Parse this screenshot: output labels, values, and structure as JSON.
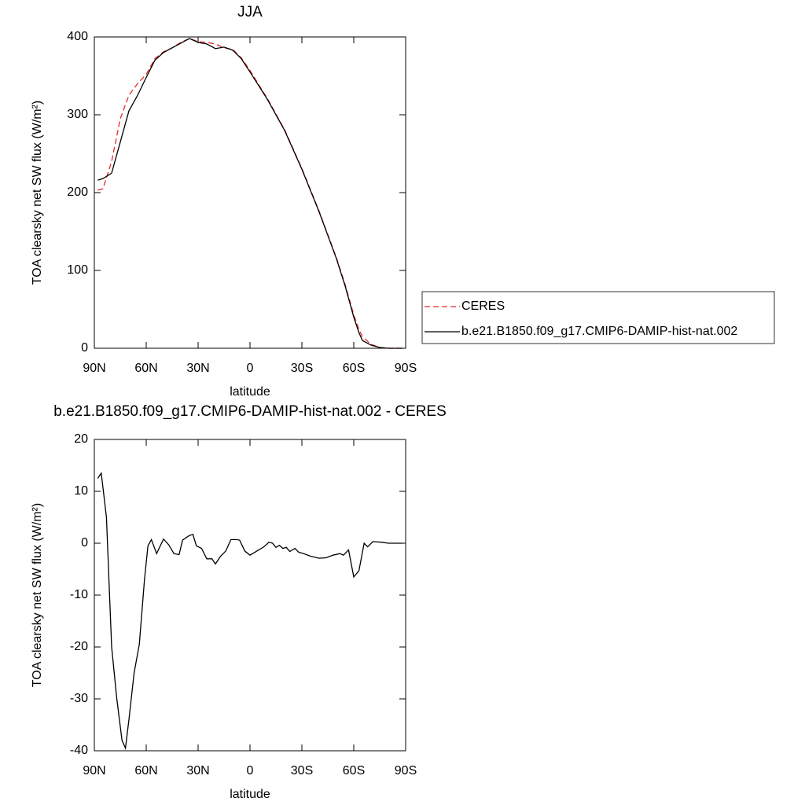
{
  "chart_data": [
    {
      "type": "line",
      "title": "JJA",
      "xlabel": "latitude",
      "ylabel": "TOA clearsky net SW flux (W/m²)",
      "x": [
        88,
        85,
        80,
        75,
        70,
        65,
        60,
        55,
        50,
        45,
        40,
        35,
        30,
        25,
        20,
        15,
        10,
        5,
        0,
        -10,
        -20,
        -30,
        -40,
        -50,
        -55,
        -60,
        -63,
        -65,
        -70,
        -75,
        -80,
        -85,
        -88
      ],
      "series": [
        {
          "name": "CERES",
          "color": "#e8282b",
          "linestyle": "dashed",
          "values": [
            203,
            205,
            240,
            295,
            325,
            340,
            352,
            372,
            381,
            386,
            393,
            398,
            394,
            393,
            391,
            386,
            384,
            373,
            357,
            321,
            281,
            231,
            176,
            116,
            82,
            43,
            24,
            15,
            5,
            1,
            0,
            0,
            0
          ]
        },
        {
          "name": "b.e21.B1850.f09_g17.CMIP6-DAMIP-hist-nat.002",
          "color": "#000000",
          "linestyle": "solid",
          "values": [
            216,
            218,
            225,
            265,
            305,
            325,
            348,
            370,
            380,
            386,
            392,
            398,
            393,
            391,
            385,
            387,
            383,
            372,
            355,
            320,
            280,
            230,
            175,
            115,
            80,
            40,
            20,
            10,
            4,
            1,
            0,
            0,
            0
          ]
        }
      ],
      "xlim": [
        90,
        -90
      ],
      "ylim": [
        0,
        400
      ],
      "xticks": [
        {
          "value": 90,
          "label": "90N"
        },
        {
          "value": 60,
          "label": "60N"
        },
        {
          "value": 30,
          "label": "30N"
        },
        0,
        {
          "value": -30,
          "label": "30S"
        },
        {
          "value": -60,
          "label": "60S"
        },
        {
          "value": -90,
          "label": "90S"
        }
      ],
      "yticks": [
        0,
        100,
        200,
        300,
        400
      ],
      "legend": "right-outside"
    },
    {
      "type": "line",
      "title": "b.e21.B1850.f09_g17.CMIP6-DAMIP-hist-nat.002 - CERES",
      "xlabel": "latitude",
      "ylabel": "TOA clearsky net SW flux (W/m²)",
      "x": [
        88,
        86,
        83,
        80,
        77,
        74,
        72,
        70,
        67,
        64,
        61,
        59,
        57,
        54,
        50,
        47,
        44,
        41,
        39,
        35,
        33,
        31,
        28,
        25,
        22,
        20,
        17,
        14,
        11,
        8,
        6,
        3,
        0,
        -4,
        -8,
        -11,
        -13,
        -15,
        -17,
        -19,
        -21,
        -23,
        -26,
        -28,
        -31,
        -35,
        -40,
        -44,
        -48,
        -52,
        -54,
        -57,
        -60,
        -63,
        -66,
        -68,
        -71,
        -76,
        -80,
        -88
      ],
      "series": [
        {
          "color": "#000000",
          "linestyle": "solid",
          "values": [
            12.5,
            13.5,
            5,
            -20,
            -30,
            -38,
            -39.5,
            -34,
            -25,
            -19.5,
            -7,
            -0.5,
            0.7,
            -2,
            0.8,
            -0.3,
            -2,
            -2.2,
            0.6,
            1.5,
            1.7,
            -0.5,
            -1,
            -3,
            -3,
            -4,
            -2.5,
            -1.5,
            0.7,
            0.7,
            0.6,
            -1.5,
            -2.3,
            -1.5,
            -0.7,
            0.2,
            0,
            -0.8,
            -0.4,
            -1,
            -0.8,
            -1.6,
            -1,
            -1.7,
            -2,
            -2.5,
            -2.9,
            -2.8,
            -2.3,
            -2,
            -2.3,
            -1.3,
            -6.5,
            -5.3,
            0,
            -0.7,
            0.3,
            0.2,
            0,
            0
          ]
        }
      ],
      "xlim": [
        90,
        -90
      ],
      "ylim": [
        -40,
        20
      ],
      "xticks": [
        {
          "value": 90,
          "label": "90N"
        },
        {
          "value": 60,
          "label": "60N"
        },
        {
          "value": 30,
          "label": "30N"
        },
        0,
        {
          "value": -30,
          "label": "30S"
        },
        {
          "value": -60,
          "label": "60S"
        },
        {
          "value": -90,
          "label": "90S"
        }
      ],
      "yticks": [
        -40,
        -30,
        -20,
        -10,
        0,
        10,
        20
      ]
    }
  ]
}
